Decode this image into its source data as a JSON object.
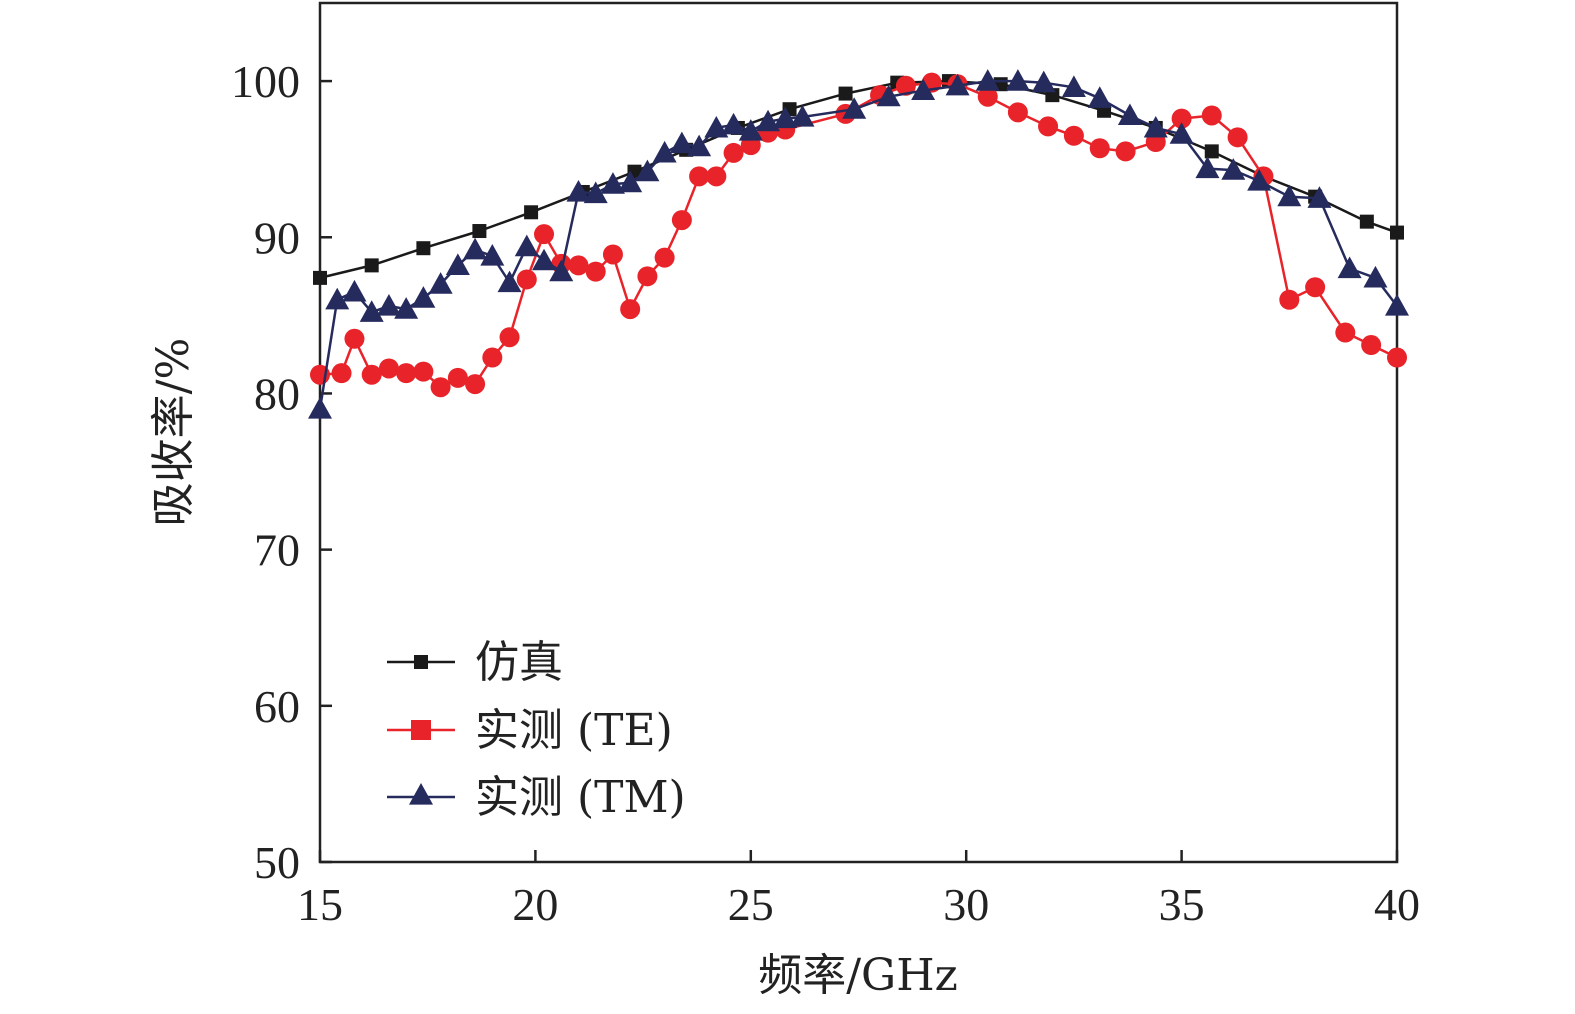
{
  "chart_data": {
    "type": "line",
    "xlabel": "频率/GHz",
    "ylabel": "吸收率/%",
    "xlim": [
      15,
      40
    ],
    "ylim": [
      50,
      105
    ],
    "xticks": [
      15,
      20,
      25,
      30,
      35,
      40
    ],
    "yticks": [
      50,
      60,
      70,
      80,
      90,
      100
    ],
    "grid": false,
    "legend_position": "bottom-left",
    "series": [
      {
        "name": "仿真",
        "color": "#1a1a1a",
        "marker": "square",
        "x": [
          15.0,
          16.2,
          17.4,
          18.7,
          19.9,
          21.1,
          22.3,
          23.5,
          24.7,
          25.9,
          27.2,
          28.4,
          29.6,
          30.8,
          32.0,
          33.2,
          34.4,
          35.7,
          36.9,
          38.1,
          39.3,
          40.0
        ],
        "y": [
          87.4,
          88.2,
          89.3,
          90.4,
          91.6,
          92.9,
          94.2,
          95.6,
          97.0,
          98.2,
          99.2,
          99.9,
          100.0,
          99.8,
          99.1,
          98.1,
          97.0,
          95.5,
          93.9,
          92.6,
          91.0,
          90.3
        ]
      },
      {
        "name": "实测 (TE)",
        "color": "#e8242a",
        "marker": "circle",
        "x": [
          15.0,
          15.5,
          15.8,
          16.2,
          16.6,
          17.0,
          17.4,
          17.8,
          18.2,
          18.6,
          19.0,
          19.4,
          19.8,
          20.2,
          20.6,
          21.0,
          21.4,
          21.8,
          22.2,
          22.6,
          23.0,
          23.4,
          23.8,
          24.2,
          24.6,
          25.0,
          25.4,
          25.8,
          27.2,
          28.0,
          28.6,
          29.2,
          29.8,
          30.5,
          31.2,
          31.9,
          32.5,
          33.1,
          33.7,
          34.4,
          35.0,
          35.7,
          36.3,
          36.9,
          37.5,
          38.1,
          38.8,
          39.4,
          40.0
        ],
        "y": [
          81.2,
          81.3,
          83.5,
          81.2,
          81.6,
          81.3,
          81.4,
          80.4,
          81.0,
          80.6,
          82.3,
          83.6,
          87.3,
          90.2,
          88.3,
          88.2,
          87.8,
          88.9,
          85.4,
          87.5,
          88.7,
          91.1,
          93.9,
          93.9,
          95.4,
          95.9,
          96.7,
          96.9,
          97.9,
          99.1,
          99.7,
          99.9,
          99.8,
          99.0,
          98.0,
          97.1,
          96.5,
          95.7,
          95.5,
          96.1,
          97.6,
          97.8,
          96.4,
          93.9,
          86.0,
          86.8,
          83.9,
          83.1,
          82.3
        ]
      },
      {
        "name": "实测 (TM)",
        "color": "#262b5e",
        "marker": "triangle",
        "x": [
          15.0,
          15.4,
          15.8,
          16.2,
          16.6,
          17.0,
          17.4,
          17.8,
          18.2,
          18.6,
          19.0,
          19.4,
          19.8,
          20.2,
          20.6,
          21.0,
          21.4,
          21.8,
          22.2,
          22.6,
          23.0,
          23.4,
          23.8,
          24.2,
          24.6,
          25.0,
          25.4,
          25.8,
          26.2,
          27.4,
          28.2,
          29.0,
          29.8,
          30.5,
          31.2,
          31.8,
          32.5,
          33.1,
          33.8,
          34.4,
          35.0,
          35.6,
          36.2,
          36.8,
          37.5,
          38.2,
          38.9,
          39.5,
          40.0
        ],
        "y": [
          79.0,
          86.0,
          86.5,
          85.2,
          85.6,
          85.4,
          86.1,
          87.0,
          88.2,
          89.2,
          88.8,
          87.1,
          89.4,
          88.5,
          87.8,
          92.9,
          92.8,
          93.4,
          93.5,
          94.2,
          95.4,
          96.0,
          95.8,
          97.0,
          97.2,
          96.8,
          97.4,
          97.6,
          97.7,
          98.2,
          99.0,
          99.4,
          99.7,
          100.0,
          100.0,
          99.9,
          99.6,
          98.9,
          97.8,
          97.0,
          96.6,
          94.4,
          94.3,
          93.6,
          92.6,
          92.5,
          88.0,
          87.4,
          85.6
        ]
      }
    ]
  }
}
